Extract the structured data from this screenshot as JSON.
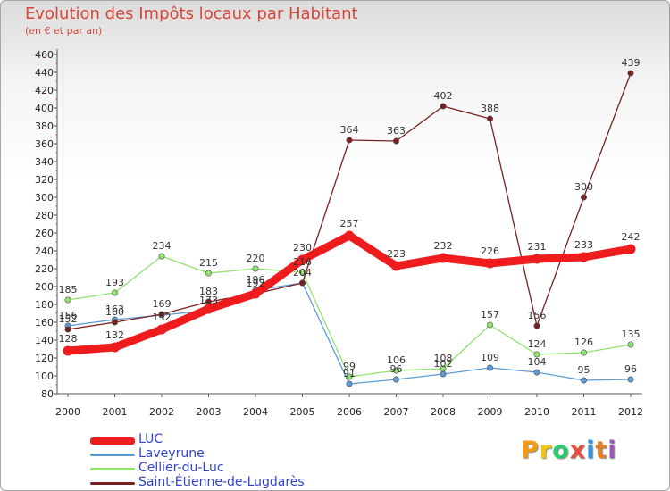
{
  "title": "Evolution des Impôts locaux par Habitant",
  "subtitle": "(en € et par an)",
  "brand": {
    "letters": [
      "P",
      "r",
      "o",
      "x",
      "i",
      "t",
      "i"
    ],
    "colors": [
      "#f39c12",
      "#f1c40f",
      "#2ecc71",
      "#e74c3c",
      "#3498db",
      "#e67e22",
      "#9b59b6"
    ]
  },
  "chart_data": {
    "type": "line",
    "x": [
      "2000",
      "2001",
      "2002",
      "2003",
      "2004",
      "2005",
      "2006",
      "2007",
      "2008",
      "2009",
      "2010",
      "2011",
      "2012"
    ],
    "ylim": [
      80,
      460
    ],
    "ytick_step": 20,
    "grid": false,
    "series": [
      {
        "name": "LUC",
        "color": "#ee1c1c",
        "emphasis": true,
        "values": [
          128,
          132,
          152,
          175,
          192,
          230,
          257,
          223,
          232,
          226,
          231,
          233,
          242
        ],
        "labels": [
          "128",
          "132",
          "152",
          "",
          "",
          "230",
          "257",
          "223",
          "232",
          "226",
          "231",
          "233",
          "242"
        ]
      },
      {
        "name": "Laveyrune",
        "color": "#5b9bd5",
        "values": [
          156,
          163,
          168,
          173,
          196,
          204,
          91,
          96,
          102,
          109,
          104,
          95,
          96
        ],
        "labels": [
          "156",
          "163",
          "",
          "173",
          "196",
          "",
          "91",
          "96",
          "102",
          "109",
          "104",
          "95",
          "96"
        ]
      },
      {
        "name": "Cellier-du-Luc",
        "color": "#8fe36f",
        "values": [
          185,
          193,
          234,
          215,
          220,
          216,
          99,
          106,
          108,
          157,
          124,
          126,
          135
        ],
        "labels": [
          "185",
          "193",
          "234",
          "215",
          "220",
          "216",
          "99",
          "106",
          "108",
          "157",
          "124",
          "126",
          "135"
        ]
      },
      {
        "name": "Saint-Étienne-de-Lugdarès",
        "color": "#7b2020",
        "values": [
          152,
          160,
          169,
          183,
          192,
          204,
          364,
          363,
          402,
          388,
          156,
          300,
          439
        ],
        "labels": [
          "152",
          "160",
          "169",
          "183",
          "192",
          "204",
          "364",
          "363",
          "402",
          "388",
          "156",
          "300",
          "439"
        ]
      }
    ]
  }
}
